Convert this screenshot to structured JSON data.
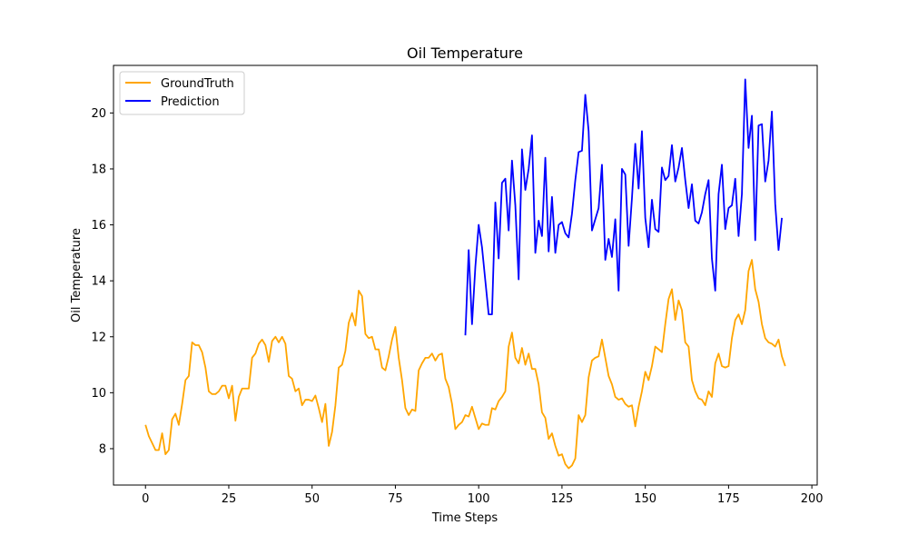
{
  "chart_data": {
    "type": "line",
    "title": "Oil Temperature",
    "xlabel": "Time Steps",
    "ylabel": "Oil Temperature",
    "xlim": [
      -9.6,
      201.6
    ],
    "ylim": [
      6.7,
      21.7
    ],
    "xticks": [
      0,
      25,
      50,
      75,
      100,
      125,
      150,
      175,
      200
    ],
    "yticks": [
      8,
      10,
      12,
      14,
      16,
      18,
      20
    ],
    "grid": false,
    "legend_position": "top-left",
    "series": [
      {
        "name": "GroundTruth",
        "color": "#FFA500",
        "x_start": 0,
        "values": [
          8.85,
          8.45,
          8.2,
          7.95,
          7.95,
          8.55,
          7.8,
          7.95,
          9.05,
          9.25,
          8.85,
          9.6,
          10.45,
          10.6,
          11.8,
          11.7,
          11.7,
          11.45,
          10.9,
          10.05,
          9.95,
          9.95,
          10.05,
          10.25,
          10.25,
          9.8,
          10.25,
          9.0,
          9.85,
          10.15,
          10.15,
          10.15,
          11.25,
          11.4,
          11.75,
          11.9,
          11.7,
          11.1,
          11.85,
          12.0,
          11.8,
          12.0,
          11.75,
          10.6,
          10.5,
          10.05,
          10.15,
          9.55,
          9.75,
          9.75,
          9.7,
          9.9,
          9.45,
          8.95,
          9.6,
          8.1,
          8.6,
          9.55,
          10.9,
          11.0,
          11.5,
          12.5,
          12.85,
          12.4,
          13.65,
          13.45,
          12.1,
          11.95,
          12.0,
          11.55,
          11.55,
          10.9,
          10.8,
          11.3,
          11.9,
          12.35,
          11.25,
          10.45,
          9.45,
          9.2,
          9.4,
          9.35,
          10.8,
          11.05,
          11.25,
          11.25,
          11.4,
          11.15,
          11.35,
          11.4,
          10.5,
          10.2,
          9.6,
          8.7,
          8.85,
          8.95,
          9.2,
          9.15,
          9.5,
          9.1,
          8.7,
          8.9,
          8.85,
          8.85,
          9.45,
          9.4,
          9.7,
          9.85,
          10.05,
          11.65,
          12.15,
          11.25,
          11.05,
          11.6,
          11.0,
          11.4,
          10.85,
          10.85,
          10.3,
          9.3,
          9.1,
          8.35,
          8.55,
          8.1,
          7.75,
          7.8,
          7.45,
          7.3,
          7.4,
          7.65,
          9.2,
          8.95,
          9.2,
          10.55,
          11.15,
          11.25,
          11.3,
          11.9,
          11.25,
          10.6,
          10.3,
          9.85,
          9.75,
          9.8,
          9.6,
          9.5,
          9.55,
          8.8,
          9.5,
          10.05,
          10.75,
          10.45,
          10.95,
          11.65,
          11.55,
          11.45,
          12.45,
          13.35,
          13.7,
          12.6,
          13.3,
          12.95,
          11.8,
          11.65,
          10.45,
          10.05,
          9.8,
          9.75,
          9.55,
          10.05,
          9.85,
          11.05,
          11.4,
          10.95,
          10.9,
          10.95,
          11.95,
          12.6,
          12.8,
          12.45,
          12.95,
          14.35,
          14.75,
          13.7,
          13.25,
          12.45,
          11.95,
          11.8,
          11.75,
          11.65,
          11.9,
          11.3,
          10.95
        ]
      },
      {
        "name": "Prediction",
        "color": "#0000FF",
        "x_start": 96,
        "values": [
          12.05,
          15.1,
          12.45,
          14.5,
          16.0,
          15.2,
          14.0,
          12.8,
          12.8,
          16.8,
          14.8,
          17.5,
          17.65,
          15.8,
          18.3,
          16.7,
          14.05,
          18.7,
          17.25,
          18.0,
          19.2,
          15.0,
          16.15,
          15.6,
          18.4,
          15.05,
          17.0,
          15.0,
          16.0,
          16.1,
          15.7,
          15.55,
          16.4,
          17.6,
          18.6,
          18.65,
          20.65,
          19.35,
          15.8,
          16.2,
          16.6,
          18.15,
          14.75,
          15.5,
          14.85,
          16.2,
          13.65,
          18.0,
          17.8,
          15.25,
          16.95,
          18.9,
          17.3,
          19.35,
          16.25,
          15.2,
          16.9,
          15.85,
          15.75,
          18.05,
          17.6,
          17.75,
          18.85,
          17.55,
          18.05,
          18.75,
          17.6,
          16.6,
          17.45,
          16.15,
          16.05,
          16.45,
          17.1,
          17.6,
          14.8,
          13.65,
          17.1,
          18.15,
          15.85,
          16.6,
          16.7,
          17.65,
          15.6,
          17.1,
          21.2,
          18.75,
          19.9,
          15.45,
          19.55,
          19.6,
          17.55,
          18.3,
          20.05,
          16.75,
          15.1,
          16.25
        ]
      }
    ]
  }
}
